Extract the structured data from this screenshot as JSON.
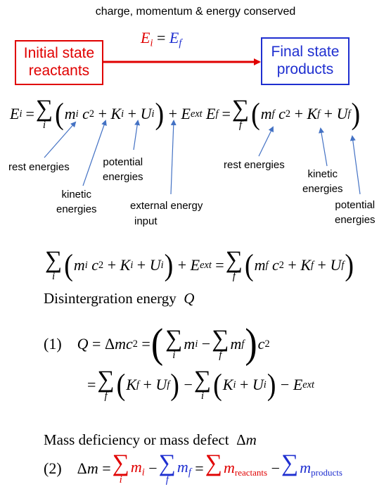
{
  "header": {
    "conservation": "charge, momentum & energy conserved"
  },
  "flow": {
    "initial_box": [
      "Initial state",
      "reactants"
    ],
    "final_box": [
      "Final state",
      "products"
    ],
    "equality": {
      "lhs": "E",
      "lhs_sub": "i",
      "eq": "=",
      "rhs": "E",
      "rhs_sub": "f"
    },
    "colors": {
      "initial": "#e00000",
      "final": "#1f2fd0",
      "arrow": "#e00000"
    }
  },
  "labels": {
    "rest_i": "rest energies",
    "kinetic_i": [
      "kinetic",
      "energies"
    ],
    "potential_i": [
      "potential",
      "energies"
    ],
    "external": [
      "external energy",
      "input"
    ],
    "rest_f": "rest energies",
    "kinetic_f": [
      "kinetic",
      "energies"
    ],
    "potential_f": [
      "potential",
      "energies"
    ],
    "arrow_color": "#4472c4"
  },
  "text": {
    "disintegration": "Disintergration energy",
    "mass_defect": "Mass deficiency or mass defect",
    "eq1_number": "(1)",
    "eq2_number": "(2)",
    "reactants_sub": "reactants",
    "products_sub": "products"
  }
}
